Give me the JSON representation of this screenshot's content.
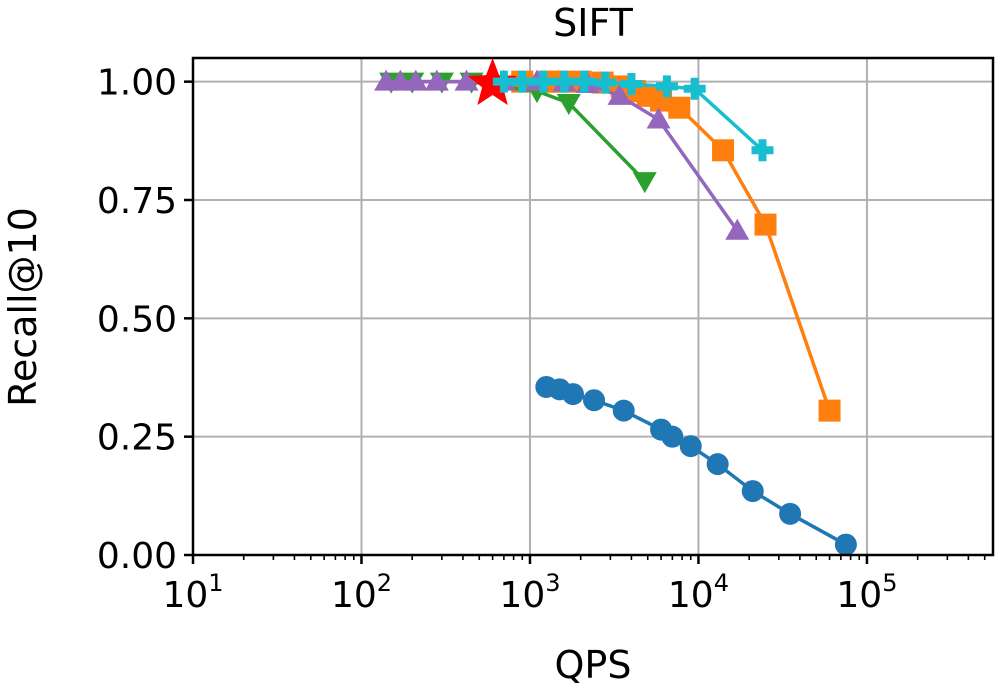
{
  "chart_data": {
    "type": "line",
    "title": "SIFT",
    "xlabel": "QPS",
    "ylabel": "Recall@10",
    "xscale": "log",
    "xlim": [
      10,
      560000
    ],
    "ylim": [
      0,
      1.05
    ],
    "grid": true,
    "xticks": [
      {
        "value": 10,
        "base": "10",
        "exp": "1"
      },
      {
        "value": 100,
        "base": "10",
        "exp": "2"
      },
      {
        "value": 1000,
        "base": "10",
        "exp": "3"
      },
      {
        "value": 10000,
        "base": "10",
        "exp": "4"
      },
      {
        "value": 100000,
        "base": "10",
        "exp": "5"
      }
    ],
    "yticks": [
      {
        "value": 0,
        "label": "0.00"
      },
      {
        "value": 0.25,
        "label": "0.25"
      },
      {
        "value": 0.5,
        "label": "0.50"
      },
      {
        "value": 0.75,
        "label": "0.75"
      },
      {
        "value": 1.0,
        "label": "1.00"
      }
    ],
    "series": [
      {
        "name": "series-blue-circle",
        "color": "#1f77b4",
        "marker": "circle",
        "x": [
          1250,
          1500,
          1800,
          2400,
          3600,
          6000,
          7000,
          9000,
          13000,
          21000,
          35000,
          75000
        ],
        "y": [
          0.355,
          0.35,
          0.34,
          0.327,
          0.305,
          0.265,
          0.25,
          0.23,
          0.192,
          0.135,
          0.087,
          0.022
        ]
      },
      {
        "name": "series-orange-square",
        "color": "#ff7f0e",
        "marker": "square",
        "x": [
          900,
          1300,
          1500,
          2000,
          2700,
          3500,
          4200,
          5000,
          6000,
          7700,
          14000,
          25000,
          60000
        ],
        "y": [
          1.0,
          1.0,
          1.0,
          1.0,
          0.998,
          0.99,
          0.98,
          0.97,
          0.96,
          0.945,
          0.855,
          0.698,
          0.305
        ]
      },
      {
        "name": "series-green-triangle-down",
        "color": "#2ca02c",
        "marker": "triangle-down",
        "x": [
          150,
          200,
          300,
          450,
          650,
          1100,
          1700,
          4800
        ],
        "y": [
          1.0,
          1.0,
          1.0,
          1.0,
          0.99,
          0.98,
          0.955,
          0.79
        ]
      },
      {
        "name": "series-purple-triangle-up",
        "color": "#9467bd",
        "marker": "triangle-up",
        "x": [
          140,
          170,
          210,
          280,
          420,
          700,
          1100,
          1600,
          2200,
          3400,
          5800,
          17000
        ],
        "y": [
          1.0,
          1.0,
          1.0,
          1.0,
          1.0,
          1.0,
          1.0,
          0.998,
          0.995,
          0.97,
          0.92,
          0.685
        ]
      },
      {
        "name": "series-red-star",
        "color": "#ff0000",
        "marker": "star",
        "x": [
          600
        ],
        "y": [
          0.995
        ]
      },
      {
        "name": "series-cyan-plus",
        "color": "#17becf",
        "marker": "plus",
        "x": [
          700,
          900,
          1200,
          1600,
          2100,
          2800,
          4000,
          6500,
          9500,
          24000
        ],
        "y": [
          1.0,
          1.0,
          1.0,
          1.0,
          1.0,
          0.998,
          0.995,
          0.99,
          0.985,
          0.855
        ]
      }
    ]
  }
}
